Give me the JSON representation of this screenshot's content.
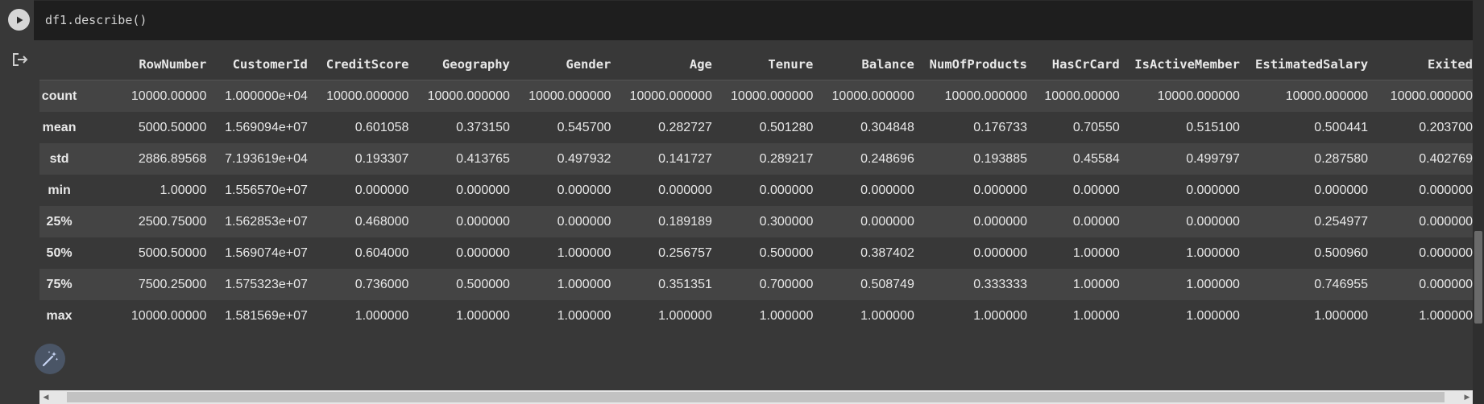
{
  "cell": {
    "code": "df1.describe()"
  },
  "table": {
    "columns": [
      "",
      "RowNumber",
      "CustomerId",
      "CreditScore",
      "Geography",
      "Gender",
      "Age",
      "Tenure",
      "Balance",
      "NumOfProducts",
      "HasCrCard",
      "IsActiveMember",
      "EstimatedSalary",
      "Exited"
    ],
    "rows": [
      {
        "label": "count",
        "values": [
          "10000.00000",
          "1.000000e+04",
          "10000.000000",
          "10000.000000",
          "10000.000000",
          "10000.000000",
          "10000.000000",
          "10000.000000",
          "10000.000000",
          "10000.00000",
          "10000.000000",
          "10000.000000",
          "10000.000000"
        ]
      },
      {
        "label": "mean",
        "values": [
          "5000.50000",
          "1.569094e+07",
          "0.601058",
          "0.373150",
          "0.545700",
          "0.282727",
          "0.501280",
          "0.304848",
          "0.176733",
          "0.70550",
          "0.515100",
          "0.500441",
          "0.203700"
        ]
      },
      {
        "label": "std",
        "values": [
          "2886.89568",
          "7.193619e+04",
          "0.193307",
          "0.413765",
          "0.497932",
          "0.141727",
          "0.289217",
          "0.248696",
          "0.193885",
          "0.45584",
          "0.499797",
          "0.287580",
          "0.402769"
        ]
      },
      {
        "label": "min",
        "values": [
          "1.00000",
          "1.556570e+07",
          "0.000000",
          "0.000000",
          "0.000000",
          "0.000000",
          "0.000000",
          "0.000000",
          "0.000000",
          "0.00000",
          "0.000000",
          "0.000000",
          "0.000000"
        ]
      },
      {
        "label": "25%",
        "values": [
          "2500.75000",
          "1.562853e+07",
          "0.468000",
          "0.000000",
          "0.000000",
          "0.189189",
          "0.300000",
          "0.000000",
          "0.000000",
          "0.00000",
          "0.000000",
          "0.254977",
          "0.000000"
        ]
      },
      {
        "label": "50%",
        "values": [
          "5000.50000",
          "1.569074e+07",
          "0.604000",
          "0.000000",
          "1.000000",
          "0.256757",
          "0.500000",
          "0.387402",
          "0.000000",
          "1.00000",
          "1.000000",
          "0.500960",
          "0.000000"
        ]
      },
      {
        "label": "75%",
        "values": [
          "7500.25000",
          "1.575323e+07",
          "0.736000",
          "0.500000",
          "1.000000",
          "0.351351",
          "0.700000",
          "0.508749",
          "0.333333",
          "1.00000",
          "1.000000",
          "0.746955",
          "0.000000"
        ]
      },
      {
        "label": "max",
        "values": [
          "10000.00000",
          "1.581569e+07",
          "1.000000",
          "1.000000",
          "1.000000",
          "1.000000",
          "1.000000",
          "1.000000",
          "1.000000",
          "1.00000",
          "1.000000",
          "1.000000",
          "1.000000"
        ]
      }
    ]
  },
  "icons": {
    "run": "play-icon",
    "output": "output-redirect-icon",
    "magic": "magic-wand-icon"
  }
}
